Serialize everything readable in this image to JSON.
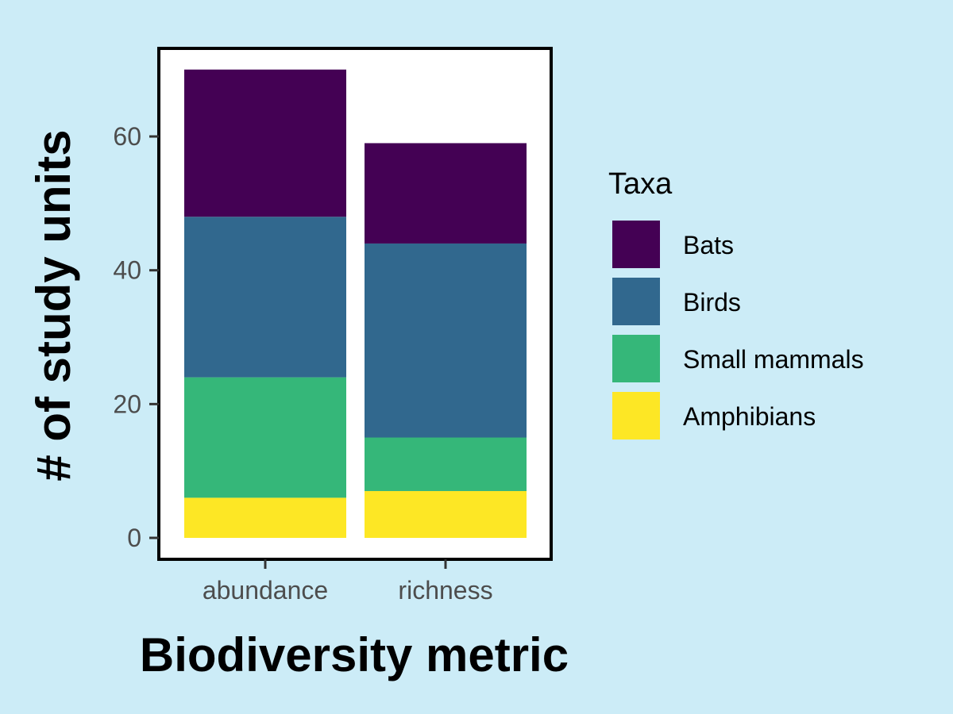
{
  "chart_data": {
    "type": "bar",
    "stacked": true,
    "categories": [
      "abundance",
      "richness"
    ],
    "series": [
      {
        "name": "Amphibians",
        "values": [
          6,
          7
        ],
        "color": "#fde725"
      },
      {
        "name": "Small mammals",
        "values": [
          18,
          8
        ],
        "color": "#35b779"
      },
      {
        "name": "Birds",
        "values": [
          24,
          29
        ],
        "color": "#31688e"
      },
      {
        "name": "Bats",
        "values": [
          22,
          15
        ],
        "color": "#440154"
      }
    ],
    "xlabel": "Biodiversity metric",
    "ylabel": "# of study units",
    "ylim": [
      0,
      70
    ],
    "yticks": [
      0,
      20,
      40,
      60
    ],
    "legend": {
      "title": "Taxa",
      "placement": "right",
      "order": [
        "Bats",
        "Birds",
        "Small mammals",
        "Amphibians"
      ]
    },
    "grid": false,
    "colors": {
      "background": "#ccecf7",
      "panel": "#ffffff",
      "border": "#000000",
      "tick_text": "#4d4d4d"
    }
  }
}
